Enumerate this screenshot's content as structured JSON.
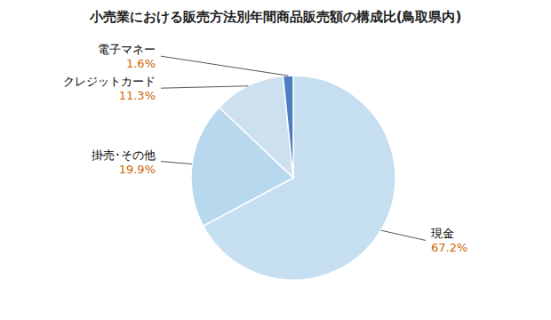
{
  "chart_data": {
    "type": "pie",
    "title": "小売業における販売方法別年間商品販売額の構成比(鳥取県内)",
    "categories": [
      "現金",
      "掛売･その他",
      "クレジットカード",
      "電子マネー"
    ],
    "values": [
      67.2,
      19.9,
      11.3,
      1.6
    ],
    "value_labels": [
      "67.2%",
      "19.9%",
      "11.3%",
      "1.6%"
    ],
    "colors": [
      "#c5dff0",
      "#b8d8ee",
      "#cce0f0",
      "#4e7ec1"
    ],
    "data_labels": true
  }
}
